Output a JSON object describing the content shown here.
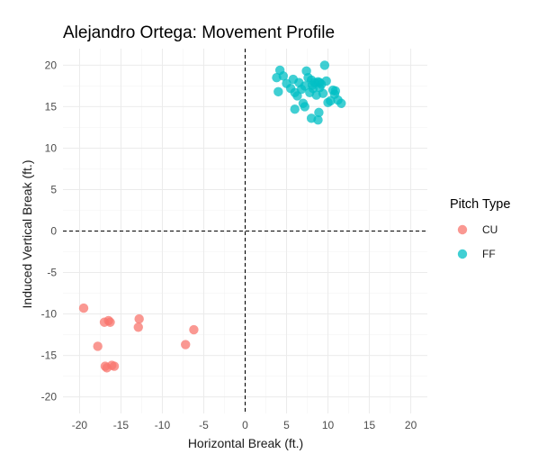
{
  "chart_data": {
    "type": "scatter",
    "title": "Alejandro Ortega: Movement Profile",
    "xlabel": "Horizontal Break (ft.)",
    "ylabel": "Induced Vertical Break (ft.)",
    "xlim": [
      -22,
      22
    ],
    "ylim": [
      -22,
      22
    ],
    "x_ticks": [
      -20,
      -15,
      -10,
      -5,
      0,
      5,
      10,
      15,
      20
    ],
    "y_ticks": [
      -20,
      -15,
      -10,
      -5,
      0,
      5,
      10,
      15,
      20
    ],
    "grid": true,
    "reference_lines": {
      "x": 0,
      "y": 0,
      "style": "dashed"
    },
    "legend": {
      "title": "Pitch Type",
      "position": "right"
    },
    "series": [
      {
        "name": "CU",
        "color": "#F8766D",
        "points": [
          [
            -19.5,
            -9.3
          ],
          [
            -17.0,
            -11.0
          ],
          [
            -16.5,
            -10.8
          ],
          [
            -16.3,
            -11.0
          ],
          [
            -12.8,
            -10.6
          ],
          [
            -12.9,
            -11.6
          ],
          [
            -17.8,
            -13.9
          ],
          [
            -16.9,
            -16.3
          ],
          [
            -16.7,
            -16.5
          ],
          [
            -16.1,
            -16.2
          ],
          [
            -15.8,
            -16.3
          ],
          [
            -7.2,
            -13.7
          ],
          [
            -6.2,
            -11.9
          ]
        ]
      },
      {
        "name": "FF",
        "color": "#00BFC4",
        "points": [
          [
            3.8,
            18.5
          ],
          [
            4.2,
            19.4
          ],
          [
            4.0,
            16.8
          ],
          [
            4.6,
            18.7
          ],
          [
            5.0,
            17.8
          ],
          [
            5.5,
            17.2
          ],
          [
            5.8,
            18.3
          ],
          [
            6.0,
            16.7
          ],
          [
            6.3,
            16.3
          ],
          [
            6.5,
            17.9
          ],
          [
            6.8,
            17.1
          ],
          [
            7.0,
            15.4
          ],
          [
            7.2,
            17.5
          ],
          [
            7.4,
            19.3
          ],
          [
            7.6,
            18.5
          ],
          [
            7.8,
            16.7
          ],
          [
            8.0,
            18.2
          ],
          [
            8.2,
            17.2
          ],
          [
            8.4,
            17.9
          ],
          [
            8.6,
            16.4
          ],
          [
            8.8,
            18.0
          ],
          [
            9.0,
            17.3
          ],
          [
            9.2,
            17.7
          ],
          [
            9.4,
            16.6
          ],
          [
            9.6,
            20.0
          ],
          [
            9.8,
            18.1
          ],
          [
            10.0,
            15.5
          ],
          [
            10.3,
            15.7
          ],
          [
            10.6,
            17.0
          ],
          [
            10.8,
            16.5
          ],
          [
            11.2,
            15.8
          ],
          [
            11.6,
            15.4
          ],
          [
            6.0,
            14.7
          ],
          [
            7.2,
            15.0
          ],
          [
            8.0,
            13.6
          ],
          [
            8.8,
            13.4
          ],
          [
            8.9,
            14.3
          ],
          [
            9.0,
            17.9
          ],
          [
            8.1,
            17.6
          ],
          [
            10.9,
            16.9
          ]
        ]
      }
    ]
  }
}
